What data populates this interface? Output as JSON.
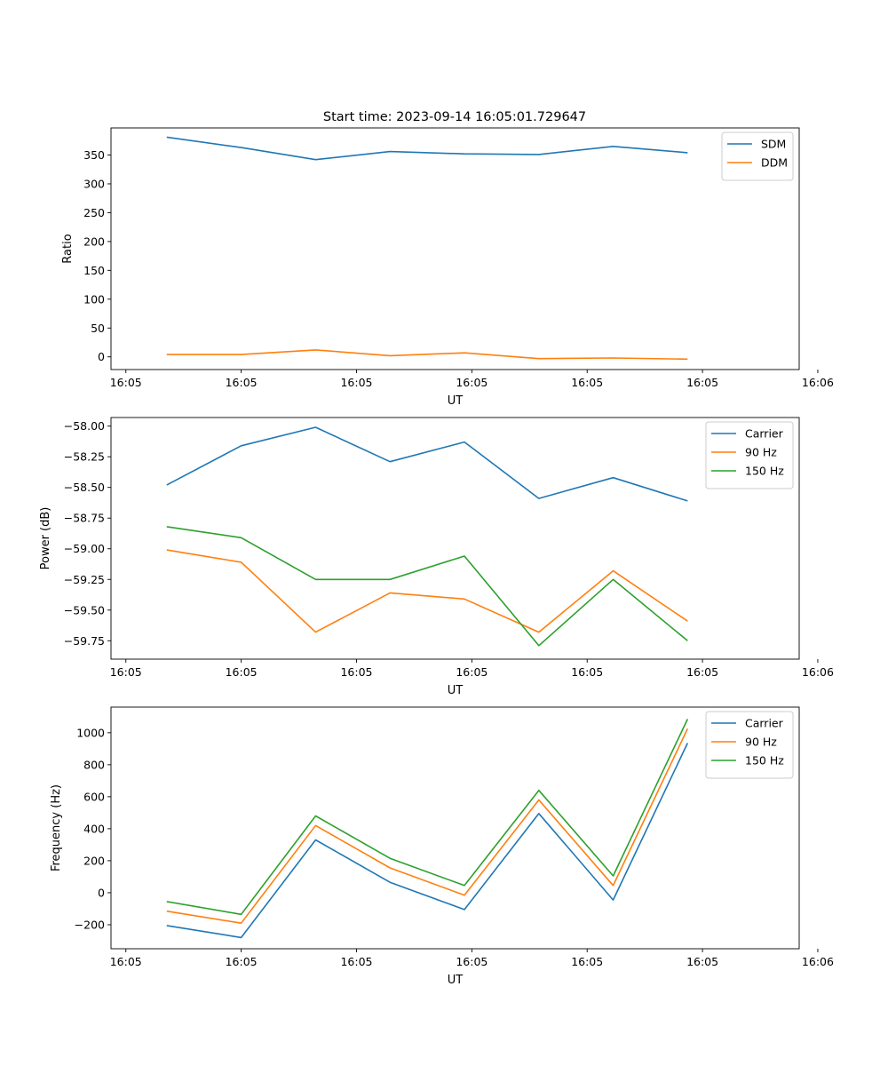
{
  "figure_title": "Start time: 2023-09-14 16:05:01.729647",
  "colors": {
    "blue": "#1f77b4",
    "orange": "#ff7f0e",
    "green": "#2ca02c"
  },
  "chart_data": [
    {
      "type": "line",
      "xlabel": "UT",
      "ylabel": "Ratio",
      "x_ticks": [
        "16:05",
        "16:05",
        "16:05",
        "16:05",
        "16:05",
        "16:05",
        "16:06"
      ],
      "xlim": [
        -0.75,
        8.5
      ],
      "ylim": [
        -22,
        397
      ],
      "y_ticks": [
        0,
        50,
        100,
        150,
        200,
        250,
        300,
        350
      ],
      "y_tick_labels": [
        "0",
        "50",
        "100",
        "150",
        "200",
        "250",
        "300",
        "350"
      ],
      "legend_position": "top-right",
      "series": [
        {
          "name": "SDM",
          "color": "#1f77b4",
          "x": [
            0,
            1,
            2,
            3,
            4,
            5,
            6,
            7
          ],
          "values": [
            381,
            363,
            342,
            356,
            352,
            351,
            365,
            354
          ]
        },
        {
          "name": "DDM",
          "color": "#ff7f0e",
          "x": [
            0,
            1,
            2,
            3,
            4,
            5,
            6,
            7
          ],
          "values": [
            4,
            4,
            12,
            2,
            7,
            -3,
            -2,
            -4
          ]
        }
      ]
    },
    {
      "type": "line",
      "xlabel": "UT",
      "ylabel": "Power (dB)",
      "x_ticks": [
        "16:05",
        "16:05",
        "16:05",
        "16:05",
        "16:05",
        "16:05",
        "16:06"
      ],
      "xlim": [
        -0.75,
        8.5
      ],
      "ylim": [
        -59.9,
        -57.93
      ],
      "y_ticks": [
        -59.75,
        -59.5,
        -59.25,
        -59.0,
        -58.75,
        -58.5,
        -58.25,
        -58.0
      ],
      "y_tick_labels": [
        "−59.75",
        "−59.50",
        "−59.25",
        "−59.00",
        "−58.75",
        "−58.50",
        "−58.25",
        "−58.00"
      ],
      "legend_position": "top-right",
      "series": [
        {
          "name": "Carrier",
          "color": "#1f77b4",
          "x": [
            0,
            1,
            2,
            3,
            4,
            5,
            6,
            7
          ],
          "values": [
            -58.48,
            -58.16,
            -58.01,
            -58.29,
            -58.13,
            -58.59,
            -58.42,
            -58.61
          ]
        },
        {
          "name": "90 Hz",
          "color": "#ff7f0e",
          "x": [
            0,
            1,
            2,
            3,
            4,
            5,
            6,
            7
          ],
          "values": [
            -59.01,
            -59.11,
            -59.68,
            -59.36,
            -59.41,
            -59.68,
            -59.18,
            -59.59
          ]
        },
        {
          "name": "150 Hz",
          "color": "#2ca02c",
          "x": [
            0,
            1,
            2,
            3,
            4,
            5,
            6,
            7
          ],
          "values": [
            -58.82,
            -58.91,
            -59.25,
            -59.25,
            -59.06,
            -59.79,
            -59.25,
            -59.75
          ]
        }
      ]
    },
    {
      "type": "line",
      "xlabel": "UT",
      "ylabel": "Frequency (Hz)",
      "x_ticks": [
        "16:05",
        "16:05",
        "16:05",
        "16:05",
        "16:05",
        "16:05",
        "16:06"
      ],
      "xlim": [
        -0.75,
        8.5
      ],
      "ylim": [
        -350,
        1160
      ],
      "y_ticks": [
        -200,
        0,
        200,
        400,
        600,
        800,
        1000
      ],
      "y_tick_labels": [
        "−200",
        "0",
        "200",
        "400",
        "600",
        "800",
        "1000"
      ],
      "legend_position": "top-right",
      "series": [
        {
          "name": "Carrier",
          "color": "#1f77b4",
          "x": [
            0,
            1,
            2,
            3,
            4,
            5,
            6,
            7
          ],
          "values": [
            -205,
            -280,
            330,
            65,
            -105,
            495,
            -45,
            935
          ]
        },
        {
          "name": "90 Hz",
          "color": "#ff7f0e",
          "x": [
            0,
            1,
            2,
            3,
            4,
            5,
            6,
            7
          ],
          "values": [
            -115,
            -190,
            420,
            155,
            -15,
            580,
            45,
            1025
          ]
        },
        {
          "name": "150 Hz",
          "color": "#2ca02c",
          "x": [
            0,
            1,
            2,
            3,
            4,
            5,
            6,
            7
          ],
          "values": [
            -55,
            -135,
            480,
            215,
            45,
            640,
            105,
            1085
          ]
        }
      ]
    }
  ]
}
